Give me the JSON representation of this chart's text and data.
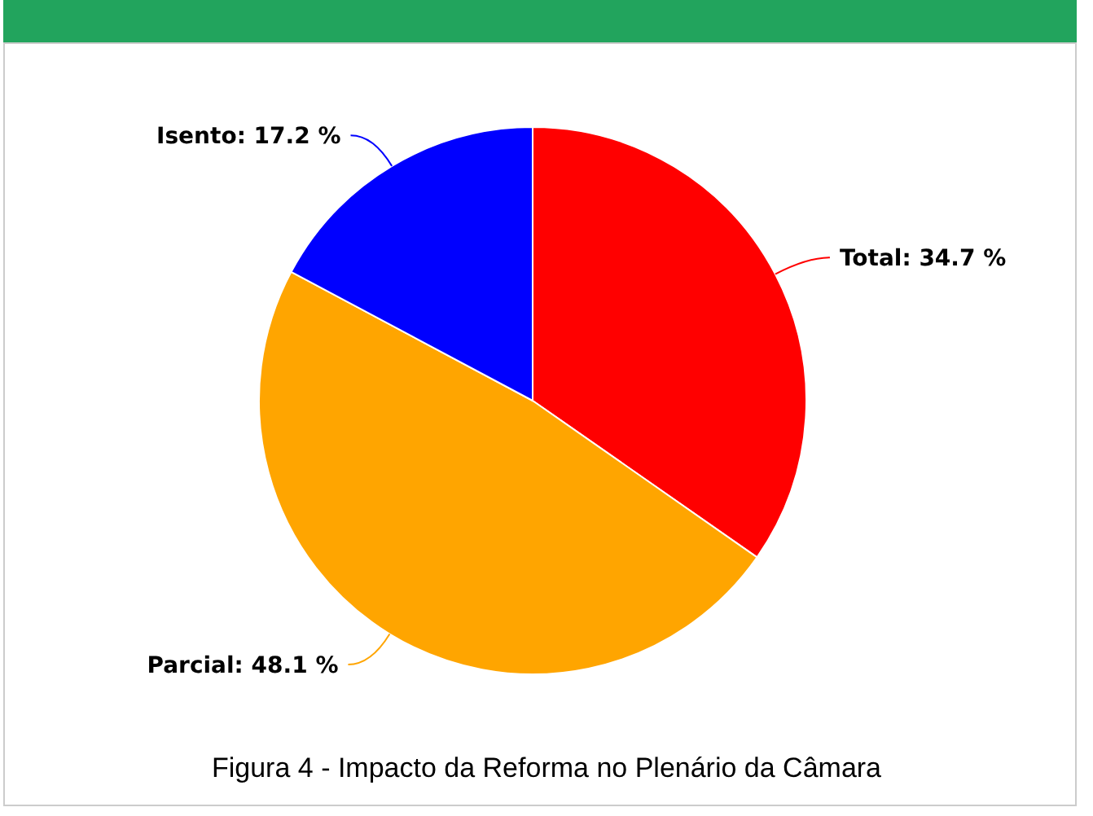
{
  "chart_data": {
    "type": "pie",
    "title": "Figura 4 - Impacto da Reforma no Plenário da Câmara",
    "categories": [
      "Total",
      "Parcial",
      "Isento"
    ],
    "values": [
      34.7,
      48.1,
      17.2
    ],
    "colors": [
      "#ff0000",
      "#ffa500",
      "#0000ff"
    ],
    "value_labels": [
      "34.7 %",
      "48.1 %",
      "17.2 %"
    ],
    "legend": false
  }
}
